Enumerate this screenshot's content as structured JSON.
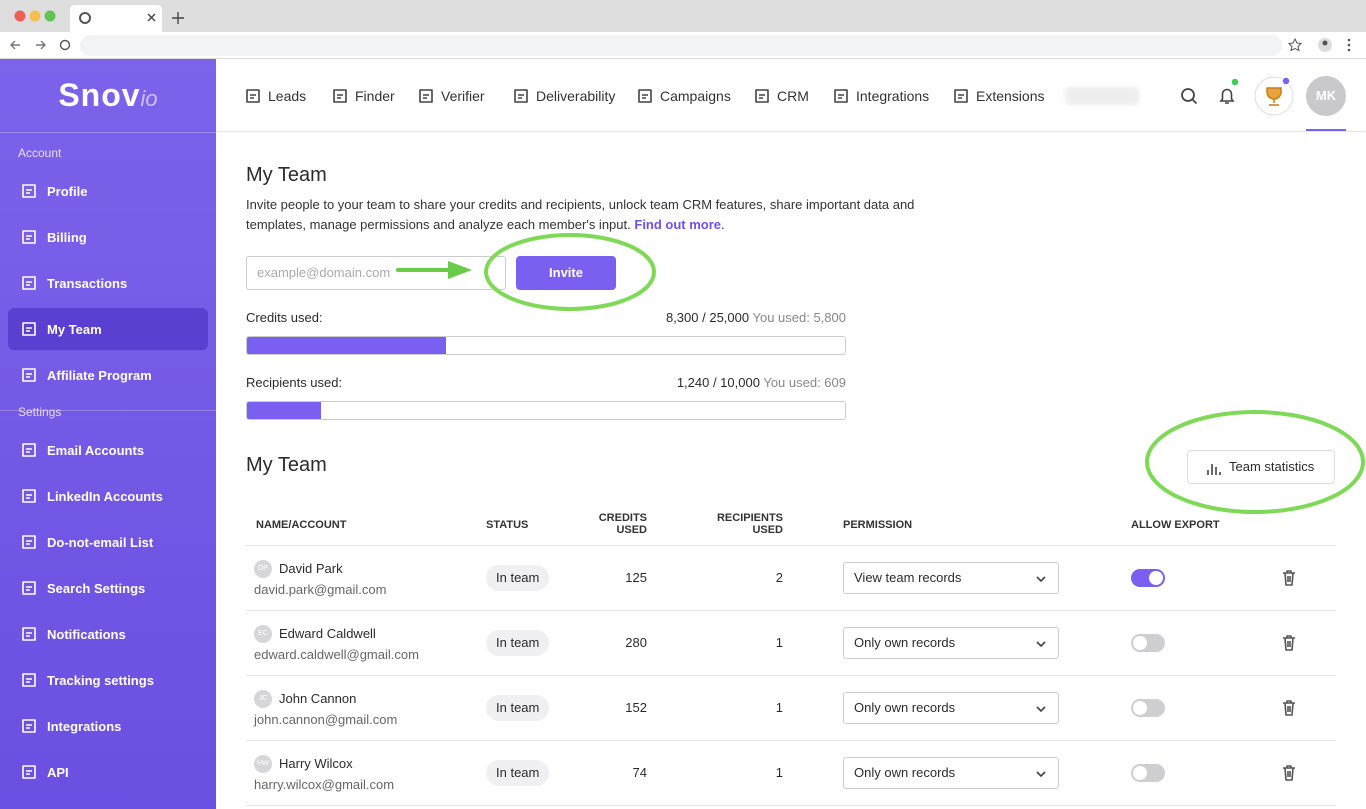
{
  "logo": {
    "main": "Snov",
    "suffix": "io"
  },
  "nav": [
    "Leads",
    "Finder",
    "Verifier",
    "Deliverability",
    "Campaigns",
    "CRM",
    "Integrations",
    "Extensions"
  ],
  "avatar": "MK",
  "sidebar": {
    "sections": [
      {
        "title": "Account",
        "items": [
          {
            "label": "Profile"
          },
          {
            "label": "Billing"
          },
          {
            "label": "Transactions"
          },
          {
            "label": "My Team",
            "active": true
          },
          {
            "label": "Affiliate Program"
          }
        ]
      },
      {
        "title": "Settings",
        "items": [
          {
            "label": "Email Accounts"
          },
          {
            "label": "LinkedIn Accounts"
          },
          {
            "label": "Do-not-email List"
          },
          {
            "label": "Search Settings"
          },
          {
            "label": "Notifications"
          },
          {
            "label": "Tracking settings"
          },
          {
            "label": "Integrations"
          },
          {
            "label": "API"
          }
        ]
      }
    ]
  },
  "intro": {
    "title": "My Team",
    "description": "Invite people to your team to share your credits and recipients, unlock team CRM features, share important data and templates, manage permissions and analyze each member's input.",
    "link": "Find out more",
    "end": "."
  },
  "invite": {
    "placeholder": "example@domain.com",
    "button": "Invite"
  },
  "usage": [
    {
      "label": "Credits used:",
      "text": "8,300 / 25,000",
      "you_used": "You used: 5,800",
      "used": 8300,
      "total": 25000
    },
    {
      "label": "Recipients used:",
      "text": "1,240 / 10,000",
      "you_used": "You used: 609",
      "used": 1240,
      "total": 10000
    }
  ],
  "team": {
    "title": "My Team",
    "stats_button": "Team statistics",
    "columns": [
      "NAME/ACCOUNT",
      "STATUS",
      "CREDITS USED",
      "RECIPIENTS USED",
      "PERMISSION",
      "ALLOW EXPORT"
    ],
    "rows": [
      {
        "initials": "DP",
        "name": "David Park",
        "email": "david.park@gmail.com",
        "status": "In team",
        "credits": 125,
        "recipients": 2,
        "permission": "View team records",
        "allow_export": true
      },
      {
        "initials": "EC",
        "name": "Edward Caldwell",
        "email": "edward.caldwell@gmail.com",
        "status": "In team",
        "credits": 280,
        "recipients": 1,
        "permission": "Only own records",
        "allow_export": false
      },
      {
        "initials": "JC",
        "name": "John Cannon",
        "email": "john.cannon@gmail.com",
        "status": "In team",
        "credits": 152,
        "recipients": 1,
        "permission": "Only own records",
        "allow_export": false
      },
      {
        "initials": "HW",
        "name": "Harry Wilcox",
        "email": "harry.wilcox@gmail.com",
        "status": "In team",
        "credits": 74,
        "recipients": 1,
        "permission": "Only own records",
        "allow_export": false
      }
    ]
  }
}
